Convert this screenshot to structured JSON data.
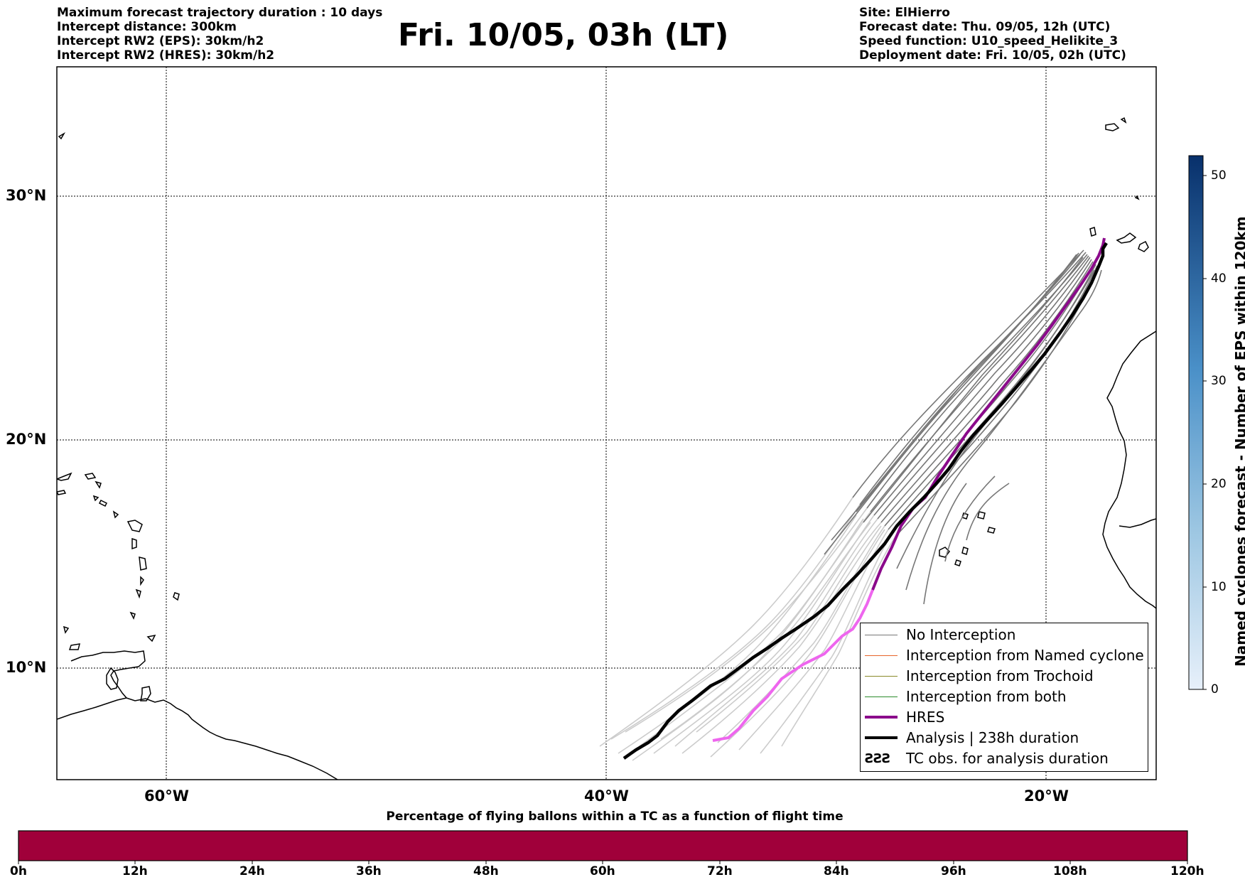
{
  "header": {
    "left_lines": [
      "Maximum forecast trajectory duration : 10 days",
      "Intercept distance: 300km",
      "Intercept RW2 (EPS):  30km/h2",
      "Intercept RW2 (HRES): 30km/h2"
    ],
    "title": "Fri. 10/05, 03h (LT)",
    "right_lines": [
      "Site: ElHierro",
      "Forecast date: Thu. 09/05, 12h (UTC)",
      "Speed function: U10_speed_Helikite_3",
      "Deployment date: Fri. 10/05, 02h (UTC)"
    ]
  },
  "map": {
    "lat_labels": [
      "30°N",
      "20°N",
      "10°N"
    ],
    "lon_labels": [
      "60°W",
      "40°W",
      "20°W"
    ],
    "colors": {
      "no_interception": "#777777",
      "named_cyclone": "#e8642a",
      "trochoid": "#8a8a2a",
      "both": "#2a8a2a",
      "hres": "#8b0a8b",
      "hres_light": "#ee66ee",
      "analysis": "#000000",
      "ensemble_light": "#cccccc"
    }
  },
  "legend": {
    "items": [
      "No Interception",
      "Interception from Named cyclone",
      "Interception from Trochoid",
      "Interception from both",
      "HRES",
      "Analysis | 238h duration",
      "TC obs. for analysis duration"
    ]
  },
  "colorbar": {
    "label": "Named cyclones forecast - Number of EPS within 120km",
    "ticks": [
      "50",
      "40",
      "30",
      "20",
      "10",
      "0"
    ]
  },
  "bottom_bar": {
    "caption": "Percentage of flying ballons within a TC as a function of flight time",
    "ticks": [
      "0h",
      "12h",
      "24h",
      "36h",
      "48h",
      "60h",
      "72h",
      "84h",
      "96h",
      "108h",
      "120h"
    ],
    "color": "#a0003a"
  }
}
